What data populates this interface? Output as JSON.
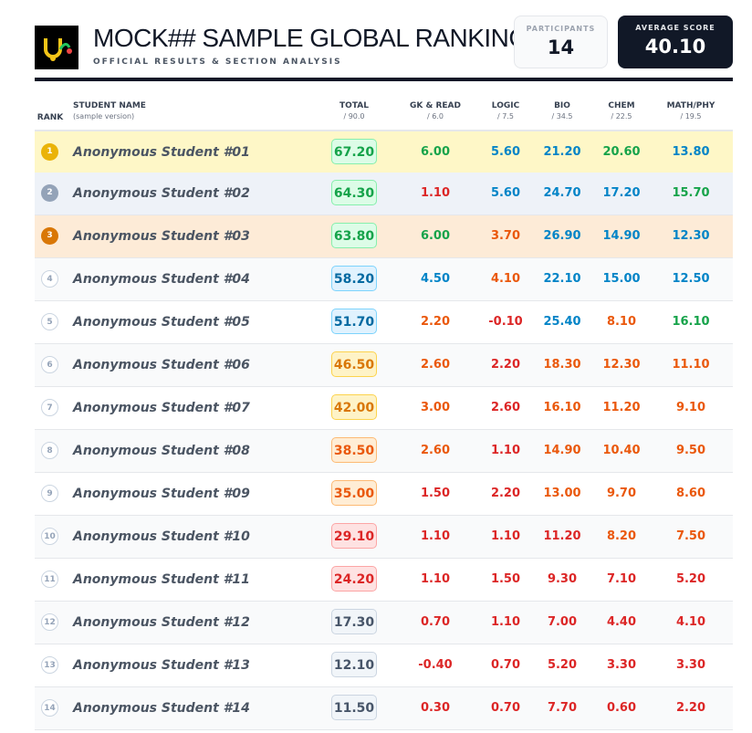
{
  "header": {
    "title": "MOCK## SAMPLE GLOBAL RANKING",
    "subtitle": "OFFICIAL RESULTS & SECTION ANALYSIS",
    "participants_label": "PARTICIPANTS",
    "participants": 14,
    "average_label": "AVERAGE SCORE",
    "average": "40.10"
  },
  "table": {
    "columns": [
      {
        "label": "RANK"
      },
      {
        "label": "STUDENT NAME",
        "sub": "(sample version)"
      },
      {
        "label": "TOTAL",
        "sub": "/ 90.0"
      },
      {
        "label": "GK & READ",
        "sub": "/ 6.0"
      },
      {
        "label": "LOGIC",
        "sub": "/ 7.5"
      },
      {
        "label": "BIO",
        "sub": "/ 34.5"
      },
      {
        "label": "CHEM",
        "sub": "/ 22.5"
      },
      {
        "label": "MATH/PHY",
        "sub": "/ 19.5"
      }
    ],
    "rows": [
      [
        1,
        "Anonymous Student #01",
        "67.20",
        "6.00",
        "5.60",
        "21.20",
        "20.60",
        "13.80"
      ],
      [
        2,
        "Anonymous Student #02",
        "64.30",
        "1.10",
        "5.60",
        "24.70",
        "17.20",
        "15.70"
      ],
      [
        3,
        "Anonymous Student #03",
        "63.80",
        "6.00",
        "3.70",
        "26.90",
        "14.90",
        "12.30"
      ],
      [
        4,
        "Anonymous Student #04",
        "58.20",
        "4.50",
        "4.10",
        "22.10",
        "15.00",
        "12.50"
      ],
      [
        5,
        "Anonymous Student #05",
        "51.70",
        "2.20",
        "-0.10",
        "25.40",
        "8.10",
        "16.10"
      ],
      [
        6,
        "Anonymous Student #06",
        "46.50",
        "2.60",
        "2.20",
        "18.30",
        "12.30",
        "11.10"
      ],
      [
        7,
        "Anonymous Student #07",
        "42.00",
        "3.00",
        "2.60",
        "16.10",
        "11.20",
        "9.10"
      ],
      [
        8,
        "Anonymous Student #08",
        "38.50",
        "2.60",
        "1.10",
        "14.90",
        "10.40",
        "9.50"
      ],
      [
        9,
        "Anonymous Student #09",
        "35.00",
        "1.50",
        "2.20",
        "13.00",
        "9.70",
        "8.60"
      ],
      [
        10,
        "Anonymous Student #10",
        "29.10",
        "1.10",
        "1.10",
        "11.20",
        "8.20",
        "7.50"
      ],
      [
        11,
        "Anonymous Student #11",
        "24.20",
        "1.10",
        "1.50",
        "9.30",
        "7.10",
        "5.20"
      ],
      [
        12,
        "Anonymous Student #12",
        "17.30",
        "0.70",
        "1.10",
        "7.00",
        "4.40",
        "4.10"
      ],
      [
        13,
        "Anonymous Student #13",
        "12.10",
        "-0.40",
        "0.70",
        "5.20",
        "3.30",
        "3.30"
      ],
      [
        14,
        "Anonymous Student #14",
        "11.50",
        "0.30",
        "0.70",
        "7.70",
        "0.60",
        "2.20"
      ]
    ]
  }
}
